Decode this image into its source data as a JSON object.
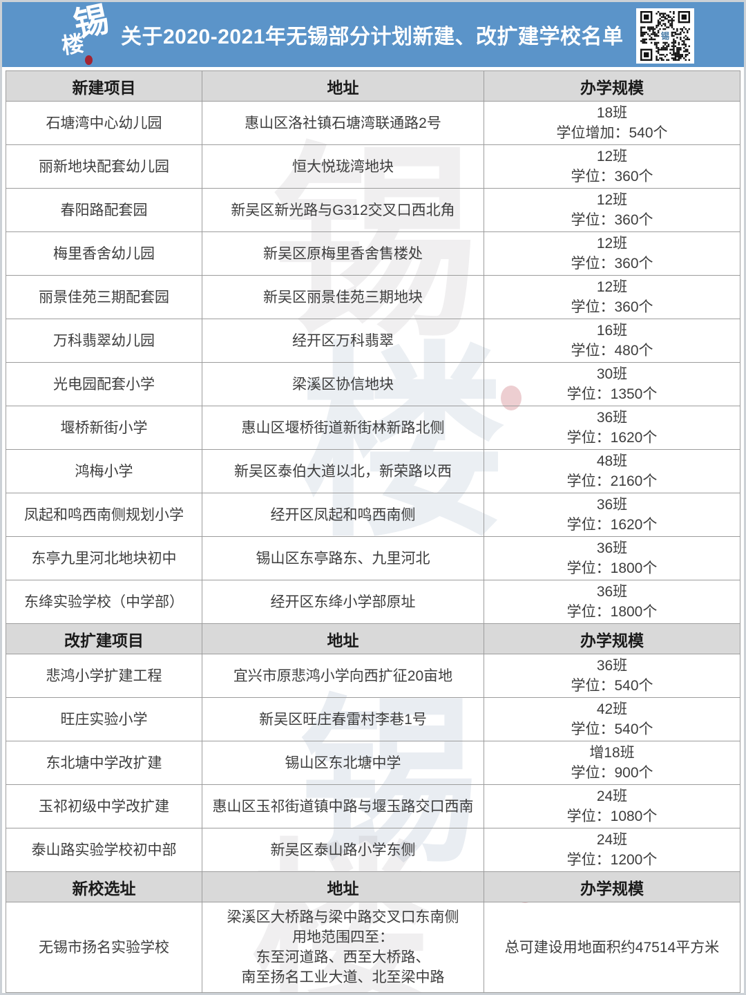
{
  "banner": {
    "logo_chars": [
      "锡",
      "楼"
    ],
    "title": "关于2020-2021年无锡部分计划新建、改扩建学校名单"
  },
  "colors": {
    "banner_bg": "#5b94c9",
    "title_text": "#ffffff",
    "section_header_bg": "#d9d9d9",
    "grid_line": "#9c9c9c",
    "cell_text": "#3d3d3d",
    "logo_seal": "#a32433"
  },
  "watermark": {
    "glyphs": [
      "锡",
      "楼",
      "锡",
      "楼"
    ]
  },
  "table": {
    "sections": [
      {
        "header": [
          "新建项目",
          "地址",
          "办学规模"
        ],
        "rows": [
          {
            "name": "石塘湾中心幼儿园",
            "address_lines": [
              "惠山区洛社镇石塘湾联通路2号"
            ],
            "scale_lines": [
              "18班",
              "学位增加：540个"
            ]
          },
          {
            "name": "丽新地块配套幼儿园",
            "address_lines": [
              "恒大悦珑湾地块"
            ],
            "scale_lines": [
              "12班",
              "学位：360个"
            ]
          },
          {
            "name": "春阳路配套园",
            "address_lines": [
              "新吴区新光路与G312交叉口西北角"
            ],
            "scale_lines": [
              "12班",
              "学位：360个"
            ]
          },
          {
            "name": "梅里香舍幼儿园",
            "address_lines": [
              "新吴区原梅里香舍售楼处"
            ],
            "scale_lines": [
              "12班",
              "学位：360个"
            ]
          },
          {
            "name": "丽景佳苑三期配套园",
            "address_lines": [
              "新吴区丽景佳苑三期地块"
            ],
            "scale_lines": [
              "12班",
              "学位：360个"
            ]
          },
          {
            "name": "万科翡翠幼儿园",
            "address_lines": [
              "经开区万科翡翠"
            ],
            "scale_lines": [
              "16班",
              "学位：480个"
            ]
          },
          {
            "name": "光电园配套小学",
            "address_lines": [
              "梁溪区协信地块"
            ],
            "scale_lines": [
              "30班",
              "学位：1350个"
            ]
          },
          {
            "name": "堰桥新街小学",
            "address_lines": [
              "惠山区堰桥街道新街林新路北侧"
            ],
            "scale_lines": [
              "36班",
              "学位：1620个"
            ]
          },
          {
            "name": "鸿梅小学",
            "address_lines": [
              "新吴区泰伯大道以北，新荣路以西"
            ],
            "scale_lines": [
              "48班",
              "学位：2160个"
            ]
          },
          {
            "name": "凤起和鸣西南侧规划小学",
            "address_lines": [
              "经开区凤起和鸣西南侧"
            ],
            "scale_lines": [
              "36班",
              "学位：1620个"
            ]
          },
          {
            "name": "东亭九里河北地块初中",
            "address_lines": [
              "锡山区东亭路东、九里河北"
            ],
            "scale_lines": [
              "36班",
              "学位：1800个"
            ]
          },
          {
            "name": "东绛实验学校（中学部）",
            "address_lines": [
              "经开区东绛小学部原址"
            ],
            "scale_lines": [
              "36班",
              "学位：1800个"
            ]
          }
        ]
      },
      {
        "header": [
          "改扩建项目",
          "地址",
          "办学规模"
        ],
        "rows": [
          {
            "name": "悲鸿小学扩建工程",
            "address_lines": [
              "宜兴市原悲鸿小学向西扩征20亩地"
            ],
            "scale_lines": [
              "36班",
              "学位：540个"
            ]
          },
          {
            "name": "旺庄实验小学",
            "address_lines": [
              "新吴区旺庄春雷村李巷1号"
            ],
            "scale_lines": [
              "42班",
              "学位：540个"
            ]
          },
          {
            "name": "东北塘中学改扩建",
            "address_lines": [
              "锡山区东北塘中学"
            ],
            "scale_lines": [
              "增18班",
              "学位：900个"
            ]
          },
          {
            "name": "玉祁初级中学改扩建",
            "address_lines": [
              "惠山区玉祁街道镇中路与堰玉路交口西南"
            ],
            "scale_lines": [
              "24班",
              "学位：1080个"
            ]
          },
          {
            "name": "泰山路实验学校初中部",
            "address_lines": [
              "新吴区泰山路小学东侧"
            ],
            "scale_lines": [
              "24班",
              "学位：1200个"
            ]
          }
        ]
      },
      {
        "header": [
          "新校选址",
          "地址",
          "办学规模"
        ],
        "rows": [
          {
            "name": "无锡市扬名实验学校",
            "address_lines": [
              "梁溪区大桥路与梁中路交叉口东南侧",
              "用地范围四至：",
              "东至河道路、西至大桥路、",
              "南至扬名工业大道、北至梁中路"
            ],
            "scale_lines": [
              "总可建设用地面积约47514平方米"
            ]
          }
        ]
      }
    ]
  }
}
